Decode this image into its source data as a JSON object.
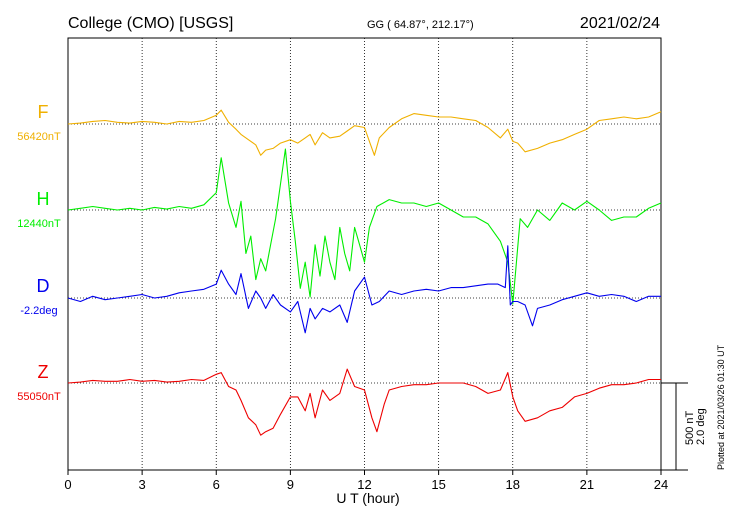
{
  "header": {
    "station": "College (CMO)  [USGS]",
    "coords": "GG ( 64.87°, 212.17°)",
    "date": "2021/02/24"
  },
  "side": {
    "scale_nt": "500 nT",
    "scale_deg": "2.0 deg",
    "plotted": "Plotted at 2021/03/26 01:30 UT"
  },
  "chart_data": {
    "type": "line",
    "xlabel": "U T (hour)",
    "xlim": [
      0,
      24
    ],
    "xticks": [
      0,
      3,
      6,
      9,
      12,
      15,
      18,
      21,
      24
    ],
    "tick_labels": [
      "0",
      "3",
      "6",
      "9",
      "12",
      "15",
      "18",
      "21",
      "24"
    ],
    "grid": true,
    "series": [
      {
        "name": "F",
        "baseline_label": "56420nT",
        "color": "#f0b000",
        "x": [
          0,
          0.5,
          1,
          1.5,
          2,
          2.5,
          3,
          3.5,
          4,
          4.5,
          5,
          5.5,
          6,
          6.2,
          6.5,
          6.8,
          7,
          7.3,
          7.6,
          7.8,
          8,
          8.3,
          8.6,
          9,
          9.3,
          9.6,
          9.8,
          10,
          10.3,
          10.6,
          11,
          11.3,
          11.6,
          12,
          12.2,
          12.4,
          12.6,
          13,
          13.5,
          14,
          14.5,
          15,
          15.5,
          16,
          16.5,
          17,
          17.5,
          17.8,
          18,
          18.2,
          18.5,
          19,
          19.5,
          20,
          20.5,
          21,
          21.5,
          22,
          22.5,
          23,
          23.5,
          24
        ],
        "y": [
          0,
          5,
          15,
          20,
          10,
          5,
          15,
          10,
          0,
          15,
          10,
          20,
          50,
          80,
          10,
          -30,
          -60,
          -90,
          -120,
          -180,
          -150,
          -140,
          -110,
          -90,
          -110,
          -80,
          -60,
          -120,
          -50,
          -80,
          -70,
          -40,
          -10,
          -20,
          -100,
          -180,
          -80,
          -20,
          30,
          60,
          50,
          40,
          40,
          30,
          20,
          -20,
          -80,
          -30,
          -100,
          -110,
          -160,
          -140,
          -110,
          -90,
          -60,
          -30,
          20,
          30,
          40,
          30,
          40,
          70
        ]
      },
      {
        "name": "H",
        "baseline_label": "12440nT",
        "color": "#00ee00",
        "x": [
          0,
          0.5,
          1,
          1.5,
          2,
          2.5,
          3,
          3.5,
          4,
          4.5,
          5,
          5.5,
          6,
          6.2,
          6.5,
          6.8,
          7,
          7.2,
          7.4,
          7.6,
          7.8,
          8,
          8.2,
          8.4,
          8.6,
          8.8,
          9,
          9.2,
          9.4,
          9.6,
          9.8,
          10,
          10.2,
          10.4,
          10.6,
          10.8,
          11,
          11.2,
          11.4,
          11.6,
          11.8,
          12,
          12.2,
          12.5,
          13,
          13.5,
          14,
          14.5,
          15,
          15.5,
          16,
          16.5,
          17,
          17.5,
          17.8,
          18,
          18.3,
          18.6,
          19,
          19.5,
          20,
          20.5,
          21,
          21.5,
          22,
          22.5,
          23,
          23.5,
          24
        ],
        "y": [
          0,
          10,
          20,
          10,
          0,
          10,
          0,
          15,
          5,
          20,
          10,
          30,
          100,
          300,
          40,
          -100,
          50,
          -250,
          -150,
          -400,
          -280,
          -350,
          -200,
          -50,
          150,
          350,
          50,
          -180,
          -450,
          -300,
          -500,
          -200,
          -380,
          -150,
          -300,
          -400,
          -100,
          -250,
          -350,
          -100,
          -200,
          -300,
          -100,
          20,
          60,
          40,
          40,
          20,
          40,
          0,
          -40,
          -40,
          -80,
          -180,
          -300,
          -540,
          -50,
          -100,
          0,
          -60,
          40,
          0,
          50,
          0,
          -60,
          -40,
          -40,
          10,
          40
        ]
      },
      {
        "name": "D",
        "baseline_label": "-2.2deg",
        "color": "#0000ee",
        "x": [
          0,
          0.5,
          1,
          1.5,
          2,
          2.5,
          3,
          3.5,
          4,
          4.5,
          5,
          5.5,
          6,
          6.2,
          6.5,
          6.8,
          7,
          7.3,
          7.6,
          7.8,
          8,
          8.3,
          8.6,
          9,
          9.3,
          9.6,
          9.8,
          10,
          10.3,
          10.6,
          11,
          11.3,
          11.6,
          12,
          12.3,
          12.6,
          13,
          13.5,
          14,
          14.5,
          15,
          15.5,
          16,
          16.5,
          17,
          17.4,
          17.7,
          17.8,
          17.9,
          18,
          18.2,
          18.5,
          18.8,
          19,
          19.5,
          20,
          20.5,
          21,
          21.5,
          22,
          22.5,
          23,
          23.5,
          24
        ],
        "y": [
          0,
          -20,
          10,
          -10,
          0,
          10,
          20,
          0,
          10,
          30,
          40,
          50,
          80,
          160,
          80,
          20,
          140,
          -60,
          40,
          0,
          -60,
          20,
          -40,
          -80,
          -20,
          -200,
          -60,
          -120,
          -60,
          -80,
          -40,
          -140,
          40,
          120,
          -40,
          -20,
          40,
          20,
          40,
          50,
          40,
          60,
          60,
          70,
          80,
          80,
          60,
          300,
          -40,
          -20,
          -20,
          -40,
          -160,
          -60,
          -40,
          -10,
          10,
          30,
          10,
          20,
          10,
          -20,
          10,
          10
        ]
      },
      {
        "name": "Z",
        "baseline_label": "55050nT",
        "color": "#ee0000",
        "x": [
          0,
          0.5,
          1,
          1.5,
          2,
          2.5,
          3,
          3.5,
          4,
          4.5,
          5,
          5.5,
          6,
          6.2,
          6.5,
          6.8,
          7,
          7.3,
          7.6,
          7.8,
          8,
          8.3,
          8.6,
          9,
          9.3,
          9.6,
          9.8,
          10,
          10.3,
          10.6,
          11,
          11.3,
          11.6,
          12,
          12.3,
          12.5,
          12.8,
          13,
          13.5,
          14,
          14.5,
          15,
          15.5,
          16,
          16.5,
          17,
          17.5,
          17.8,
          18,
          18.2,
          18.5,
          19,
          19.5,
          20,
          20.5,
          21,
          21.5,
          22,
          22.5,
          23,
          23.5,
          24
        ],
        "y": [
          0,
          5,
          15,
          10,
          10,
          20,
          10,
          15,
          5,
          10,
          20,
          15,
          50,
          60,
          -20,
          -40,
          -100,
          -200,
          -240,
          -300,
          -280,
          -260,
          -180,
          -80,
          -80,
          -160,
          -60,
          -200,
          -40,
          -100,
          -60,
          80,
          -20,
          -40,
          -200,
          -280,
          -120,
          -40,
          -20,
          -10,
          -10,
          0,
          0,
          0,
          -20,
          -60,
          -40,
          60,
          -80,
          -160,
          -220,
          -200,
          -160,
          -140,
          -80,
          -60,
          -30,
          -10,
          -10,
          0,
          20,
          20
        ]
      }
    ]
  }
}
